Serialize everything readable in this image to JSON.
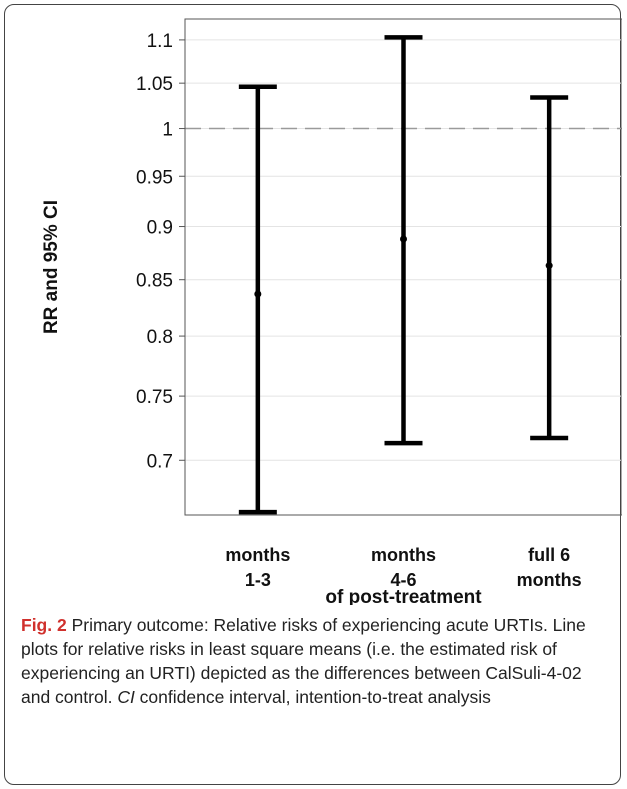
{
  "chart_data": {
    "type": "errorbar",
    "ylabel": "RR and 95% CI",
    "xlabel": "of post-treatment",
    "yscale": "log",
    "ylim": [
      0.66,
      1.125
    ],
    "yticks": [
      0.7,
      0.75,
      0.8,
      0.85,
      0.9,
      0.95,
      1,
      1.05,
      1.1
    ],
    "ytick_labels": [
      "0.7",
      "0.75",
      "0.8",
      "0.85",
      "0.9",
      "0.95",
      "1",
      "1.05",
      "1.1"
    ],
    "reference_line": 1,
    "grid": "horizontal",
    "categories": [
      {
        "label_lines": [
          "months",
          "1-3"
        ],
        "rr": 0.837,
        "ci_low": 0.662,
        "ci_high": 1.046
      },
      {
        "label_lines": [
          "months",
          "4-6"
        ],
        "rr": 0.888,
        "ci_low": 0.713,
        "ci_high": 1.103
      },
      {
        "label_lines": [
          "full 6",
          "months"
        ],
        "rr": 0.863,
        "ci_low": 0.717,
        "ci_high": 1.034
      }
    ],
    "colors": {
      "bars": "#000000",
      "reference": "#9a9a9a",
      "grid": "#e4e4e4",
      "frame": "#555555"
    }
  },
  "caption": {
    "label": "Fig. 2",
    "text1": " Primary outcome: Relative risks of experiencing acute URTIs. Line plots for relative risks in least square means (i.e. the estimated risk of experiencing an URTI) depicted as the differences between CalSuli-4-02 and control. ",
    "ci_term": "CI",
    "text2": " confidence interval, intention-to-treat analysis"
  }
}
